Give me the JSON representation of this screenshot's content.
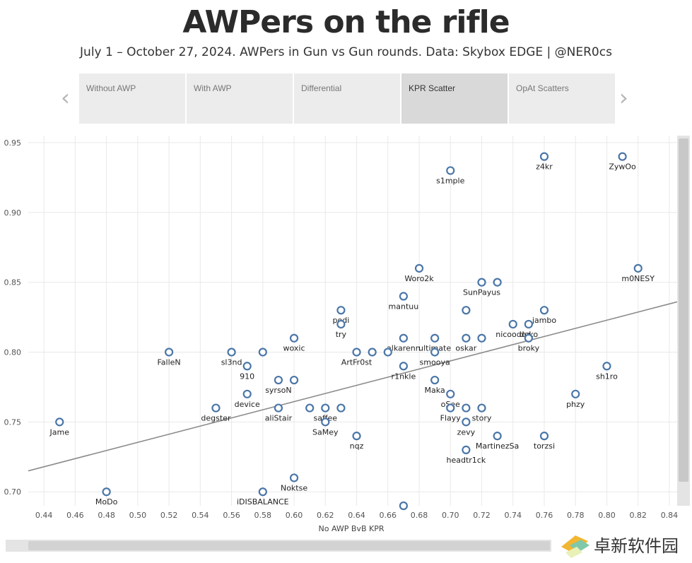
{
  "header": {
    "title": "AWPers on the rifle",
    "subtitle": "July 1 – October 27, 2024. AWPers in Gun vs Gun rounds. Data: Skybox EDGE | @NER0cs"
  },
  "nav": {
    "prev_glyph": "‹",
    "next_glyph": "›",
    "tabs": [
      {
        "label": "Without AWP",
        "active": false
      },
      {
        "label": "With AWP",
        "active": false
      },
      {
        "label": "Differential",
        "active": false
      },
      {
        "label": "KPR Scatter",
        "active": true
      },
      {
        "label": "OpAt Scatters",
        "active": false
      }
    ]
  },
  "watermark": {
    "text": "卓新软件园"
  },
  "colors": {
    "marker": "#4a76a8",
    "trend": "#8c8c8c",
    "grid": "#e9e9e9"
  },
  "chart_data": {
    "type": "scatter",
    "title": "",
    "xlabel": "No AWP BvB KPR",
    "ylabel": "",
    "xlim": [
      0.43,
      0.845
    ],
    "ylim": [
      0.69,
      0.955
    ],
    "x_ticks": [
      "0.44",
      "0.46",
      "0.48",
      "0.50",
      "0.52",
      "0.54",
      "0.56",
      "0.58",
      "0.60",
      "0.62",
      "0.64",
      "0.66",
      "0.68",
      "0.70",
      "0.72",
      "0.74",
      "0.76",
      "0.78",
      "0.80",
      "0.82",
      "0.84"
    ],
    "y_ticks": [
      "0.70",
      "0.75",
      "0.80",
      "0.85",
      "0.90",
      "0.95"
    ],
    "grid": true,
    "trendline": {
      "x": [
        0.43,
        0.845
      ],
      "y": [
        0.715,
        0.836
      ]
    },
    "points": [
      {
        "label": "ZywOo",
        "x": 0.81,
        "y": 0.94
      },
      {
        "label": "z4kr",
        "x": 0.76,
        "y": 0.94
      },
      {
        "label": "s1mple",
        "x": 0.7,
        "y": 0.93
      },
      {
        "label": "m0NESY",
        "x": 0.82,
        "y": 0.86
      },
      {
        "label": "Woro2k",
        "x": 0.68,
        "y": 0.86
      },
      {
        "label": "SunPayus",
        "x": 0.72,
        "y": 0.85
      },
      {
        "label": "",
        "x": 0.73,
        "y": 0.85
      },
      {
        "label": "mantuu",
        "x": 0.67,
        "y": 0.84
      },
      {
        "label": "podi",
        "x": 0.63,
        "y": 0.83
      },
      {
        "label": "jambo",
        "x": 0.76,
        "y": 0.83
      },
      {
        "label": "",
        "x": 0.71,
        "y": 0.83
      },
      {
        "label": "try",
        "x": 0.63,
        "y": 0.82
      },
      {
        "label": "nicoodoz",
        "x": 0.74,
        "y": 0.82
      },
      {
        "label": "deko",
        "x": 0.75,
        "y": 0.82
      },
      {
        "label": "woxic",
        "x": 0.6,
        "y": 0.81
      },
      {
        "label": "alkarenn",
        "x": 0.67,
        "y": 0.81
      },
      {
        "label": "ultimate",
        "x": 0.69,
        "y": 0.81
      },
      {
        "label": "oskar",
        "x": 0.71,
        "y": 0.81
      },
      {
        "label": "",
        "x": 0.72,
        "y": 0.81
      },
      {
        "label": "broky",
        "x": 0.75,
        "y": 0.81
      },
      {
        "label": "FalleN",
        "x": 0.52,
        "y": 0.8
      },
      {
        "label": "sl3nd",
        "x": 0.56,
        "y": 0.8
      },
      {
        "label": "",
        "x": 0.58,
        "y": 0.8
      },
      {
        "label": "ArtFr0st",
        "x": 0.64,
        "y": 0.8
      },
      {
        "label": "",
        "x": 0.65,
        "y": 0.8
      },
      {
        "label": "",
        "x": 0.66,
        "y": 0.8
      },
      {
        "label": "smooya",
        "x": 0.69,
        "y": 0.8
      },
      {
        "label": "910",
        "x": 0.57,
        "y": 0.79
      },
      {
        "label": "r1nkle",
        "x": 0.67,
        "y": 0.79
      },
      {
        "label": "sh1ro",
        "x": 0.8,
        "y": 0.79
      },
      {
        "label": "syrsoN",
        "x": 0.59,
        "y": 0.78
      },
      {
        "label": "",
        "x": 0.6,
        "y": 0.78
      },
      {
        "label": "Maka",
        "x": 0.69,
        "y": 0.78
      },
      {
        "label": "device",
        "x": 0.57,
        "y": 0.77
      },
      {
        "label": "oSee",
        "x": 0.7,
        "y": 0.77
      },
      {
        "label": "phzy",
        "x": 0.78,
        "y": 0.77
      },
      {
        "label": "degster",
        "x": 0.55,
        "y": 0.76
      },
      {
        "label": "aliStair",
        "x": 0.59,
        "y": 0.76
      },
      {
        "label": "",
        "x": 0.61,
        "y": 0.76
      },
      {
        "label": "saffee",
        "x": 0.62,
        "y": 0.76
      },
      {
        "label": "",
        "x": 0.63,
        "y": 0.76
      },
      {
        "label": "Flayy",
        "x": 0.7,
        "y": 0.76
      },
      {
        "label": "",
        "x": 0.71,
        "y": 0.76
      },
      {
        "label": "story",
        "x": 0.72,
        "y": 0.76
      },
      {
        "label": "Jame",
        "x": 0.45,
        "y": 0.75
      },
      {
        "label": "SaMey",
        "x": 0.62,
        "y": 0.75
      },
      {
        "label": "zevy",
        "x": 0.71,
        "y": 0.75
      },
      {
        "label": "nqz",
        "x": 0.64,
        "y": 0.74
      },
      {
        "label": "MartinezSa",
        "x": 0.73,
        "y": 0.74
      },
      {
        "label": "torzsi",
        "x": 0.76,
        "y": 0.74
      },
      {
        "label": "headtr1ck",
        "x": 0.71,
        "y": 0.73
      },
      {
        "label": "Noktse",
        "x": 0.6,
        "y": 0.71
      },
      {
        "label": "MoDo",
        "x": 0.48,
        "y": 0.7
      },
      {
        "label": "iDISBALANCE",
        "x": 0.58,
        "y": 0.7
      },
      {
        "label": "",
        "x": 0.67,
        "y": 0.69
      }
    ]
  }
}
